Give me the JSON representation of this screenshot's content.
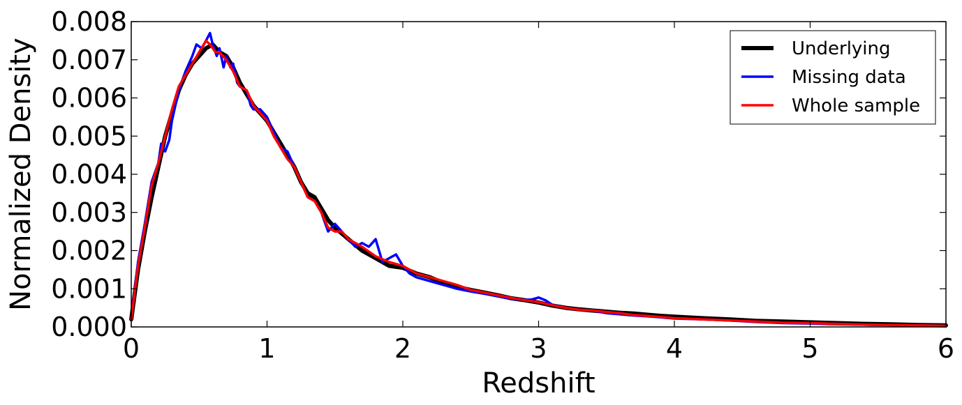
{
  "chart_data": {
    "type": "line",
    "title": "",
    "xlabel": "Redshift",
    "ylabel": "Normalized Density",
    "xlim": [
      0,
      6
    ],
    "ylim": [
      0,
      0.008
    ],
    "xticks": [
      "0",
      "1",
      "2",
      "3",
      "4",
      "5",
      "6"
    ],
    "yticks": [
      "0.000",
      "0.001",
      "0.002",
      "0.003",
      "0.004",
      "0.005",
      "0.006",
      "0.007",
      "0.008"
    ],
    "grid": false,
    "legend_position": "top-right",
    "series": [
      {
        "name": "Underlying",
        "color": "#000000",
        "x": [
          0,
          0.05,
          0.1,
          0.15,
          0.2,
          0.25,
          0.3,
          0.35,
          0.4,
          0.45,
          0.5,
          0.55,
          0.6,
          0.65,
          0.7,
          0.75,
          0.8,
          0.85,
          0.9,
          0.95,
          1.0,
          1.05,
          1.1,
          1.15,
          1.2,
          1.25,
          1.3,
          1.35,
          1.4,
          1.45,
          1.5,
          1.6,
          1.7,
          1.8,
          1.9,
          2.0,
          2.1,
          2.2,
          2.3,
          2.4,
          2.5,
          2.6,
          2.7,
          2.8,
          2.9,
          3.0,
          3.1,
          3.2,
          3.3,
          3.4,
          3.5,
          3.6,
          3.7,
          3.8,
          3.9,
          4.0,
          4.2,
          4.4,
          4.6,
          4.8,
          5.0,
          5.2,
          5.4,
          5.6,
          5.8,
          6.0
        ],
        "y": [
          0.0002,
          0.0015,
          0.0025,
          0.0034,
          0.0042,
          0.005,
          0.0056,
          0.0062,
          0.0066,
          0.0069,
          0.0071,
          0.0073,
          0.0074,
          0.0072,
          0.0071,
          0.0068,
          0.0064,
          0.0061,
          0.0058,
          0.0056,
          0.0054,
          0.0051,
          0.0048,
          0.0045,
          0.0042,
          0.0038,
          0.0035,
          0.0034,
          0.0031,
          0.0028,
          0.0026,
          0.0023,
          0.002,
          0.0018,
          0.0016,
          0.00155,
          0.0014,
          0.0013,
          0.00115,
          0.00105,
          0.00097,
          0.0009,
          0.00083,
          0.00075,
          0.0007,
          0.00064,
          0.00056,
          0.0005,
          0.00046,
          0.00043,
          0.0004,
          0.00037,
          0.00035,
          0.00032,
          0.00029,
          0.00027,
          0.00023,
          0.0002,
          0.00016,
          0.00014,
          0.00012,
          0.0001,
          8e-05,
          7e-05,
          5e-05,
          4e-05
        ]
      },
      {
        "name": "Missing data",
        "color": "#0000ff",
        "x": [
          0,
          0.05,
          0.1,
          0.15,
          0.2,
          0.22,
          0.25,
          0.28,
          0.3,
          0.35,
          0.4,
          0.45,
          0.48,
          0.52,
          0.55,
          0.58,
          0.6,
          0.63,
          0.65,
          0.68,
          0.7,
          0.73,
          0.75,
          0.78,
          0.8,
          0.85,
          0.88,
          0.9,
          0.95,
          1.0,
          1.05,
          1.1,
          1.15,
          1.2,
          1.25,
          1.3,
          1.35,
          1.4,
          1.45,
          1.5,
          1.55,
          1.6,
          1.65,
          1.7,
          1.75,
          1.8,
          1.85,
          1.9,
          1.95,
          2.0,
          2.05,
          2.1,
          2.2,
          2.3,
          2.4,
          2.5,
          2.6,
          2.7,
          2.8,
          2.9,
          2.95,
          3.0,
          3.05,
          3.1,
          3.2,
          3.3,
          3.4,
          3.5,
          3.6,
          3.7,
          3.8,
          3.9,
          4.0,
          4.2,
          4.4,
          4.6,
          4.8,
          5.0,
          5.2,
          5.4,
          5.6,
          5.8,
          6.0
        ],
        "y": [
          0.0002,
          0.0017,
          0.0027,
          0.0038,
          0.0043,
          0.0048,
          0.0046,
          0.0049,
          0.0054,
          0.0062,
          0.0067,
          0.0071,
          0.0074,
          0.0073,
          0.0075,
          0.0077,
          0.0074,
          0.0071,
          0.0073,
          0.0068,
          0.0071,
          0.0068,
          0.0069,
          0.0064,
          0.0063,
          0.0062,
          0.0058,
          0.0057,
          0.0057,
          0.0055,
          0.0051,
          0.0047,
          0.0046,
          0.0042,
          0.0038,
          0.0034,
          0.0033,
          0.003,
          0.0025,
          0.0027,
          0.0025,
          0.0023,
          0.0021,
          0.0022,
          0.0021,
          0.0023,
          0.0017,
          0.0018,
          0.0019,
          0.0016,
          0.0014,
          0.0013,
          0.0012,
          0.0011,
          0.001,
          0.00093,
          0.00087,
          0.0008,
          0.00073,
          0.00071,
          0.00072,
          0.00077,
          0.0007,
          0.00058,
          0.0005,
          0.00045,
          0.00043,
          0.00036,
          0.00033,
          0.0003,
          0.00028,
          0.00025,
          0.00022,
          0.0002,
          0.00017,
          0.00013,
          0.0001,
          9e-05,
          7e-05,
          6e-05,
          5e-05,
          4e-05,
          3e-05
        ]
      },
      {
        "name": "Whole sample",
        "color": "#ff0000",
        "x": [
          0,
          0.05,
          0.1,
          0.15,
          0.2,
          0.25,
          0.3,
          0.35,
          0.4,
          0.45,
          0.5,
          0.55,
          0.58,
          0.62,
          0.65,
          0.7,
          0.75,
          0.8,
          0.85,
          0.9,
          0.95,
          1.0,
          1.05,
          1.1,
          1.15,
          1.2,
          1.25,
          1.3,
          1.35,
          1.4,
          1.45,
          1.5,
          1.55,
          1.6,
          1.7,
          1.8,
          1.9,
          2.0,
          2.1,
          2.2,
          2.3,
          2.4,
          2.5,
          2.6,
          2.7,
          2.8,
          2.9,
          3.0,
          3.1,
          3.2,
          3.3,
          3.4,
          3.5,
          3.6,
          3.7,
          3.8,
          3.9,
          4.0,
          4.2,
          4.4,
          4.6,
          4.8,
          5.0,
          5.2,
          5.4,
          5.6,
          5.8,
          6.0
        ],
        "y": [
          0.0002,
          0.0016,
          0.0026,
          0.0037,
          0.0043,
          0.005,
          0.0057,
          0.0063,
          0.0066,
          0.0069,
          0.0072,
          0.0075,
          0.0074,
          0.0072,
          0.0072,
          0.007,
          0.0067,
          0.0063,
          0.0062,
          0.0058,
          0.0056,
          0.0054,
          0.005,
          0.0047,
          0.0044,
          0.0042,
          0.0038,
          0.0034,
          0.0033,
          0.003,
          0.0026,
          0.0025,
          0.0025,
          0.0023,
          0.0021,
          0.00185,
          0.0017,
          0.0016,
          0.0014,
          0.0013,
          0.0012,
          0.0011,
          0.00097,
          0.0009,
          0.00083,
          0.00076,
          0.0007,
          0.00065,
          0.00057,
          0.0005,
          0.00045,
          0.00043,
          0.00039,
          0.00036,
          0.00031,
          0.00029,
          0.00026,
          0.00023,
          0.0002,
          0.00017,
          0.00014,
          0.00011,
          0.0001,
          8e-05,
          6e-05,
          5e-05,
          4e-05,
          3e-05
        ]
      }
    ]
  }
}
